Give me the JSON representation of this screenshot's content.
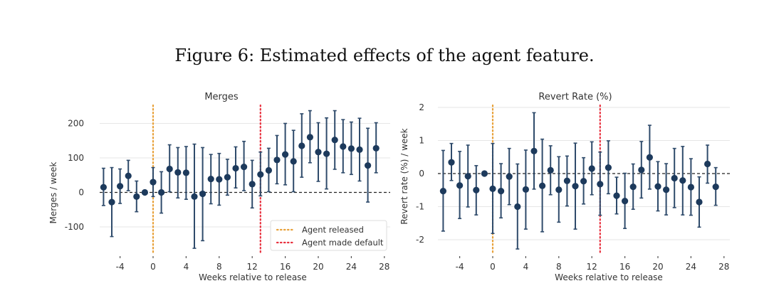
{
  "figure": {
    "title": "Figure 6: Estimated effects of the agent feature."
  },
  "colors": {
    "point": "#1d3a5c",
    "errorbar": "#2f4b6b",
    "agent_released": "#e8a13a",
    "agent_default": "#e8313f",
    "gridline": "#e6e6e6",
    "zero_line": "#222222"
  },
  "chart_data": [
    {
      "type": "scatter",
      "subtype": "errorbar",
      "title": "Merges",
      "xlabel": "Weeks relative to release",
      "ylabel": "Merges / week",
      "xlim": [
        -7,
        28.5
      ],
      "ylim": [
        -170,
        250
      ],
      "xticks": [
        -4,
        0,
        4,
        8,
        12,
        16,
        20,
        24,
        28
      ],
      "xtick_labels": [
        "-4",
        "0",
        "4",
        "8",
        "12",
        "16",
        "20",
        "24",
        "28"
      ],
      "yticks": [
        -100,
        0,
        100,
        200
      ],
      "ytick_labels": [
        "-100",
        "0",
        "100",
        "200"
      ],
      "grid": "horizontal",
      "reference_hline": 0,
      "vlines": [
        {
          "x": 0,
          "label": "Agent released",
          "color_key": "agent_released"
        },
        {
          "x": 13,
          "label": "Agent made default",
          "color_key": "agent_default"
        }
      ],
      "legend": {
        "placement": "bottom-right",
        "entries": [
          "Agent released",
          "Agent made default"
        ]
      },
      "x": [
        -6,
        -5,
        -4,
        -3,
        -2,
        -1,
        0,
        1,
        2,
        3,
        4,
        5,
        6,
        7,
        8,
        9,
        10,
        11,
        12,
        13,
        14,
        15,
        16,
        17,
        18,
        19,
        20,
        21,
        22,
        23,
        24,
        25,
        26,
        27
      ],
      "y": [
        15,
        -28,
        18,
        48,
        -12,
        0,
        30,
        0,
        68,
        58,
        57,
        -12,
        -4,
        39,
        38,
        44,
        70,
        74,
        24,
        52,
        64,
        94,
        110,
        90,
        135,
        160,
        117,
        112,
        152,
        133,
        127,
        124,
        78,
        128
      ],
      "ci_upper": [
        70,
        72,
        68,
        93,
        33,
        0,
        72,
        60,
        138,
        130,
        133,
        140,
        130,
        110,
        113,
        96,
        132,
        148,
        93,
        117,
        128,
        165,
        200,
        180,
        228,
        237,
        202,
        216,
        237,
        211,
        204,
        215,
        186,
        202
      ],
      "ci_lower": [
        -38,
        -128,
        -32,
        5,
        -56,
        0,
        -12,
        -60,
        2,
        -16,
        -20,
        -162,
        -140,
        -33,
        -37,
        -8,
        13,
        5,
        -45,
        -10,
        2,
        25,
        22,
        2,
        44,
        86,
        32,
        10,
        67,
        57,
        52,
        33,
        -28,
        57
      ]
    },
    {
      "type": "scatter",
      "subtype": "errorbar",
      "title": "Revert Rate (%)",
      "xlabel": "Weeks relative to release",
      "ylabel": "Revert rate (%) / week",
      "xlim": [
        -7,
        28.5
      ],
      "ylim": [
        -2.5,
        2.2
      ],
      "xticks": [
        -4,
        0,
        4,
        8,
        12,
        16,
        20,
        24,
        28
      ],
      "xtick_labels": [
        "-4",
        "0",
        "4",
        "8",
        "12",
        "16",
        "20",
        "24",
        "28"
      ],
      "yticks": [
        -2,
        -1,
        0,
        1,
        2
      ],
      "ytick_labels": [
        "-2",
        "-1",
        "0",
        "1",
        "2"
      ],
      "grid": "horizontal",
      "reference_hline": 0,
      "vlines": [
        {
          "x": 0,
          "label": "Agent released",
          "color_key": "agent_released"
        },
        {
          "x": 13,
          "label": "Agent made default",
          "color_key": "agent_default"
        }
      ],
      "legend": null,
      "x": [
        -6,
        -5,
        -4,
        -3,
        -2,
        -1,
        0,
        1,
        2,
        3,
        4,
        5,
        6,
        7,
        8,
        9,
        10,
        11,
        12,
        13,
        14,
        15,
        16,
        17,
        18,
        19,
        20,
        21,
        22,
        23,
        24,
        25,
        26,
        27
      ],
      "y": [
        -0.53,
        0.34,
        -0.36,
        -0.08,
        -0.5,
        0,
        -0.46,
        -0.53,
        -0.09,
        -1.0,
        -0.48,
        0.68,
        -0.37,
        0.1,
        -0.49,
        -0.22,
        -0.38,
        -0.23,
        0.15,
        -0.32,
        0.18,
        -0.67,
        -0.83,
        -0.4,
        0.11,
        0.49,
        -0.39,
        -0.49,
        -0.14,
        -0.21,
        -0.41,
        -0.86,
        0.29,
        -0.4
      ],
      "ci_upper": [
        0.7,
        0.91,
        0.67,
        0.86,
        0.24,
        0,
        0.91,
        0.3,
        0.76,
        0.29,
        0.71,
        1.84,
        1.04,
        0.84,
        0.51,
        0.53,
        0.92,
        0.48,
        0.96,
        0.65,
        0.99,
        -0.11,
        0.01,
        0.29,
        0.97,
        1.46,
        0.36,
        0.3,
        0.76,
        0.82,
        0.45,
        -0.1,
        0.86,
        0.18
      ],
      "ci_lower": [
        -1.74,
        -0.21,
        -1.36,
        -1.01,
        -1.25,
        0,
        -1.81,
        -1.34,
        -0.94,
        -2.28,
        -1.68,
        -0.47,
        -1.76,
        -0.64,
        -1.47,
        -0.98,
        -1.68,
        -0.92,
        -0.64,
        -1.26,
        -0.61,
        -1.22,
        -1.66,
        -1.08,
        -0.74,
        -0.47,
        -1.13,
        -1.25,
        -1.03,
        -1.25,
        -1.26,
        -1.62,
        -0.29,
        -0.96
      ]
    }
  ]
}
